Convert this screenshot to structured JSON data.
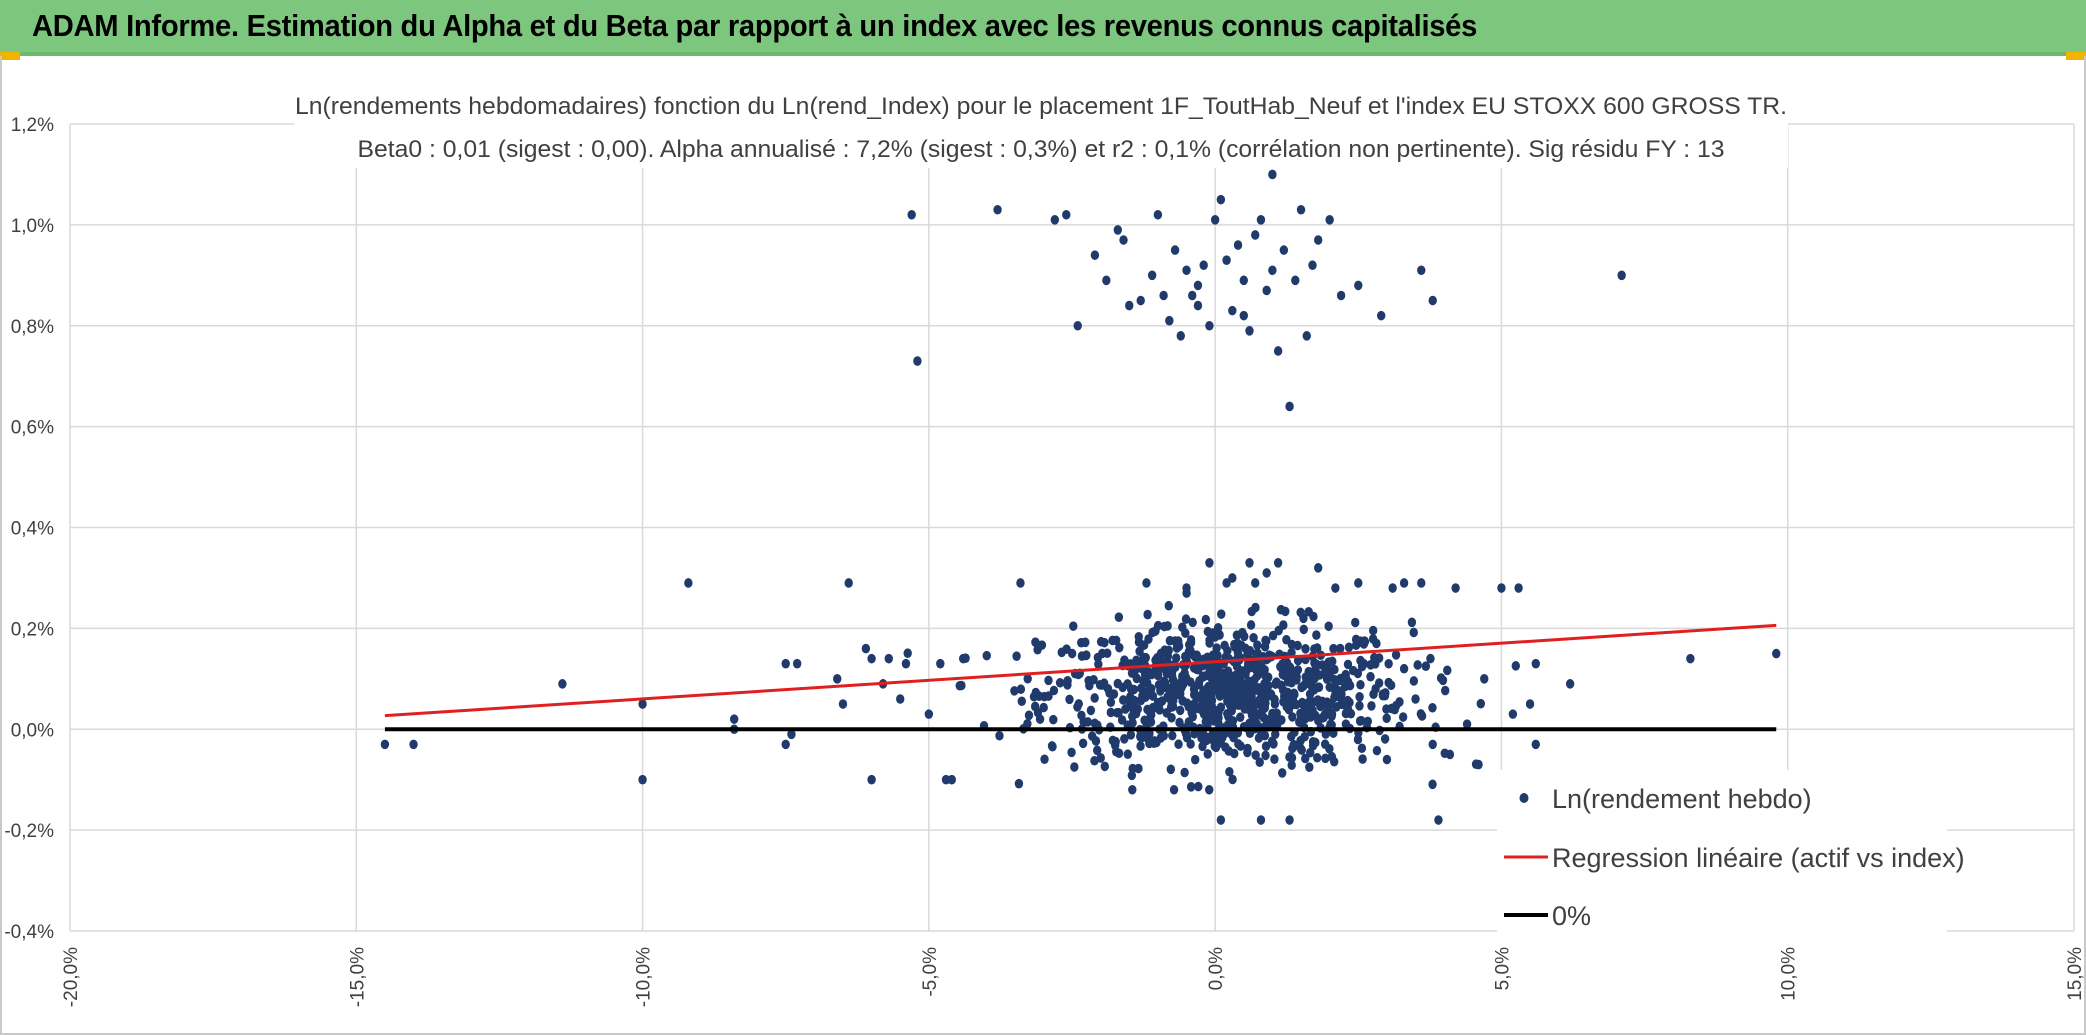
{
  "header": {
    "title": "ADAM Informe. Estimation du Alpha et du Beta par rapport à un index avec les revenus connus capitalisés",
    "accent_color": "#7dc67d"
  },
  "chart_data": {
    "type": "scatter",
    "title": "Ln(rendements hebdomadaires) fonction du Ln(rend_Index) pour le placement 1F_ToutHab_Neuf et l'index EU STOXX 600 GROSS TR.",
    "subtitle": "Beta0 : 0,01 (sigest : 0,00). Alpha annualisé : 7,2% (sigest : 0,3%) et r2 : 0,1% (corrélation non pertinente). Sig résidu FY : 13",
    "xlim": [
      -0.2,
      0.15
    ],
    "ylim": [
      -0.004,
      0.012
    ],
    "x_ticks": [
      -0.2,
      -0.15,
      -0.1,
      -0.05,
      0.0,
      0.05,
      0.1,
      0.15
    ],
    "x_tick_labels": [
      "-20,0%",
      "-15,0%",
      "-10,0%",
      "-5,0%",
      "0,0%",
      "5,0%",
      "10,0%",
      "15,0%"
    ],
    "y_ticks": [
      -0.004,
      -0.002,
      0.0,
      0.002,
      0.004,
      0.006,
      0.008,
      0.01,
      0.012
    ],
    "y_tick_labels": [
      "-0,4%",
      "-0,2%",
      "0,0%",
      "0,2%",
      "0,4%",
      "0,6%",
      "0,8%",
      "1,0%",
      "1,2%"
    ],
    "grid": true,
    "legend_position": "bottom-right",
    "series": [
      {
        "name": "Ln(rendement hebdo)",
        "kind": "scatter",
        "color": "#1f3a6b",
        "points": [
          [
            -0.145,
            -0.0003
          ],
          [
            -0.14,
            -0.0003
          ],
          [
            -0.114,
            0.0009
          ],
          [
            -0.1,
            0.0005
          ],
          [
            -0.1,
            -0.001
          ],
          [
            -0.092,
            0.0029
          ],
          [
            -0.084,
            0.0002
          ],
          [
            -0.084,
            0.0
          ],
          [
            -0.075,
            0.0013
          ],
          [
            -0.073,
            0.0013
          ],
          [
            -0.075,
            -0.0003
          ],
          [
            -0.074,
            -0.0001
          ],
          [
            -0.066,
            0.001
          ],
          [
            -0.065,
            0.0005
          ],
          [
            -0.064,
            0.0029
          ],
          [
            -0.061,
            0.0016
          ],
          [
            -0.06,
            0.0014
          ],
          [
            -0.06,
            -0.001
          ],
          [
            -0.058,
            0.0009
          ],
          [
            -0.057,
            0.0014
          ],
          [
            -0.055,
            0.0006
          ],
          [
            -0.054,
            0.0013
          ],
          [
            -0.053,
            0.0102
          ],
          [
            -0.052,
            0.0073
          ],
          [
            -0.05,
            0.0003
          ],
          [
            -0.048,
            0.0013
          ],
          [
            -0.047,
            -0.001
          ],
          [
            -0.046,
            -0.001
          ],
          [
            -0.044,
            0.0014
          ],
          [
            -0.038,
            0.0103
          ],
          [
            -0.034,
            0.0029
          ],
          [
            -0.028,
            0.0101
          ],
          [
            -0.026,
            0.0102
          ],
          [
            -0.024,
            0.008
          ],
          [
            -0.021,
            0.0094
          ],
          [
            -0.019,
            0.0089
          ],
          [
            -0.017,
            0.0099
          ],
          [
            -0.016,
            0.0097
          ],
          [
            -0.015,
            0.0084
          ],
          [
            -0.013,
            0.0085
          ],
          [
            -0.011,
            0.009
          ],
          [
            -0.01,
            0.0102
          ],
          [
            -0.009,
            0.0086
          ],
          [
            -0.008,
            0.0081
          ],
          [
            -0.007,
            0.0095
          ],
          [
            -0.006,
            0.0078
          ],
          [
            -0.005,
            0.0091
          ],
          [
            -0.004,
            0.0086
          ],
          [
            -0.003,
            0.0088
          ],
          [
            -0.002,
            0.0092
          ],
          [
            -0.001,
            0.008
          ],
          [
            0.0,
            0.0101
          ],
          [
            0.001,
            0.0105
          ],
          [
            0.002,
            0.0093
          ],
          [
            0.003,
            0.0083
          ],
          [
            0.004,
            0.0096
          ],
          [
            0.005,
            0.0089
          ],
          [
            0.006,
            0.0079
          ],
          [
            0.007,
            0.0098
          ],
          [
            0.008,
            0.0101
          ],
          [
            0.009,
            0.0087
          ],
          [
            0.01,
            0.0091
          ],
          [
            0.011,
            0.0075
          ],
          [
            0.012,
            0.0095
          ],
          [
            0.013,
            0.0064
          ],
          [
            0.014,
            0.0089
          ],
          [
            0.015,
            0.0103
          ],
          [
            0.016,
            0.0078
          ],
          [
            0.017,
            0.0092
          ],
          [
            0.018,
            0.0097
          ],
          [
            0.02,
            0.0101
          ],
          [
            0.022,
            0.0086
          ],
          [
            0.025,
            0.0088
          ],
          [
            0.029,
            0.0082
          ],
          [
            0.036,
            0.0091
          ],
          [
            0.038,
            0.0085
          ],
          [
            0.071,
            0.009
          ],
          [
            0.01,
            0.011
          ],
          [
            0.005,
            0.0082
          ],
          [
            -0.003,
            0.0084
          ],
          [
            0.002,
            0.0029
          ],
          [
            0.006,
            0.0033
          ],
          [
            0.007,
            0.0029
          ],
          [
            0.011,
            0.0033
          ],
          [
            0.018,
            0.0032
          ],
          [
            0.021,
            0.0028
          ],
          [
            0.025,
            0.0029
          ],
          [
            0.031,
            0.0028
          ],
          [
            0.033,
            0.0029
          ],
          [
            0.036,
            0.0029
          ],
          [
            0.042,
            0.0028
          ],
          [
            0.05,
            0.0028
          ],
          [
            0.053,
            0.0028
          ],
          [
            -0.012,
            0.0029
          ],
          [
            -0.005,
            0.0028
          ],
          [
            -0.001,
            0.0033
          ],
          [
            0.003,
            0.003
          ],
          [
            0.009,
            0.0031
          ],
          [
            0.001,
            -0.0018
          ],
          [
            0.008,
            -0.0018
          ],
          [
            0.013,
            -0.0018
          ],
          [
            0.039,
            -0.0018
          ],
          [
            0.077,
            -0.001
          ],
          [
            0.056,
            -0.0003
          ],
          [
            0.052,
            0.0003
          ],
          [
            0.055,
            0.0005
          ],
          [
            0.062,
            0.0009
          ],
          [
            0.056,
            0.0013
          ],
          [
            0.083,
            0.0014
          ],
          [
            0.098,
            0.0015
          ],
          [
            0.047,
            0.001
          ],
          [
            0.044,
            0.0001
          ],
          [
            0.046,
            -0.0007
          ],
          [
            0.041,
            -0.0005
          ],
          [
            0.038,
            -0.0003
          ],
          [
            0.035,
            0.0006
          ],
          [
            0.033,
            0.0012
          ],
          [
            0.03,
            -0.0006
          ]
        ],
        "generated_cluster": {
          "count": 900,
          "x_mean": 0.002,
          "x_sd": 0.016,
          "y_mean": 0.0007,
          "y_sd": 0.0007,
          "x_range": [
            -0.055,
            0.055
          ],
          "y_range": [
            -0.0012,
            0.0027
          ]
        }
      },
      {
        "name": "Regression linéaire (actif vs index)",
        "kind": "line",
        "color": "#e02020",
        "x": [
          -0.145,
          0.098
        ],
        "y": [
          0.00027,
          0.00206
        ]
      },
      {
        "name": "0%",
        "kind": "line",
        "color": "#000000",
        "x": [
          -0.145,
          0.098
        ],
        "y": [
          0.0,
          0.0
        ]
      }
    ]
  }
}
